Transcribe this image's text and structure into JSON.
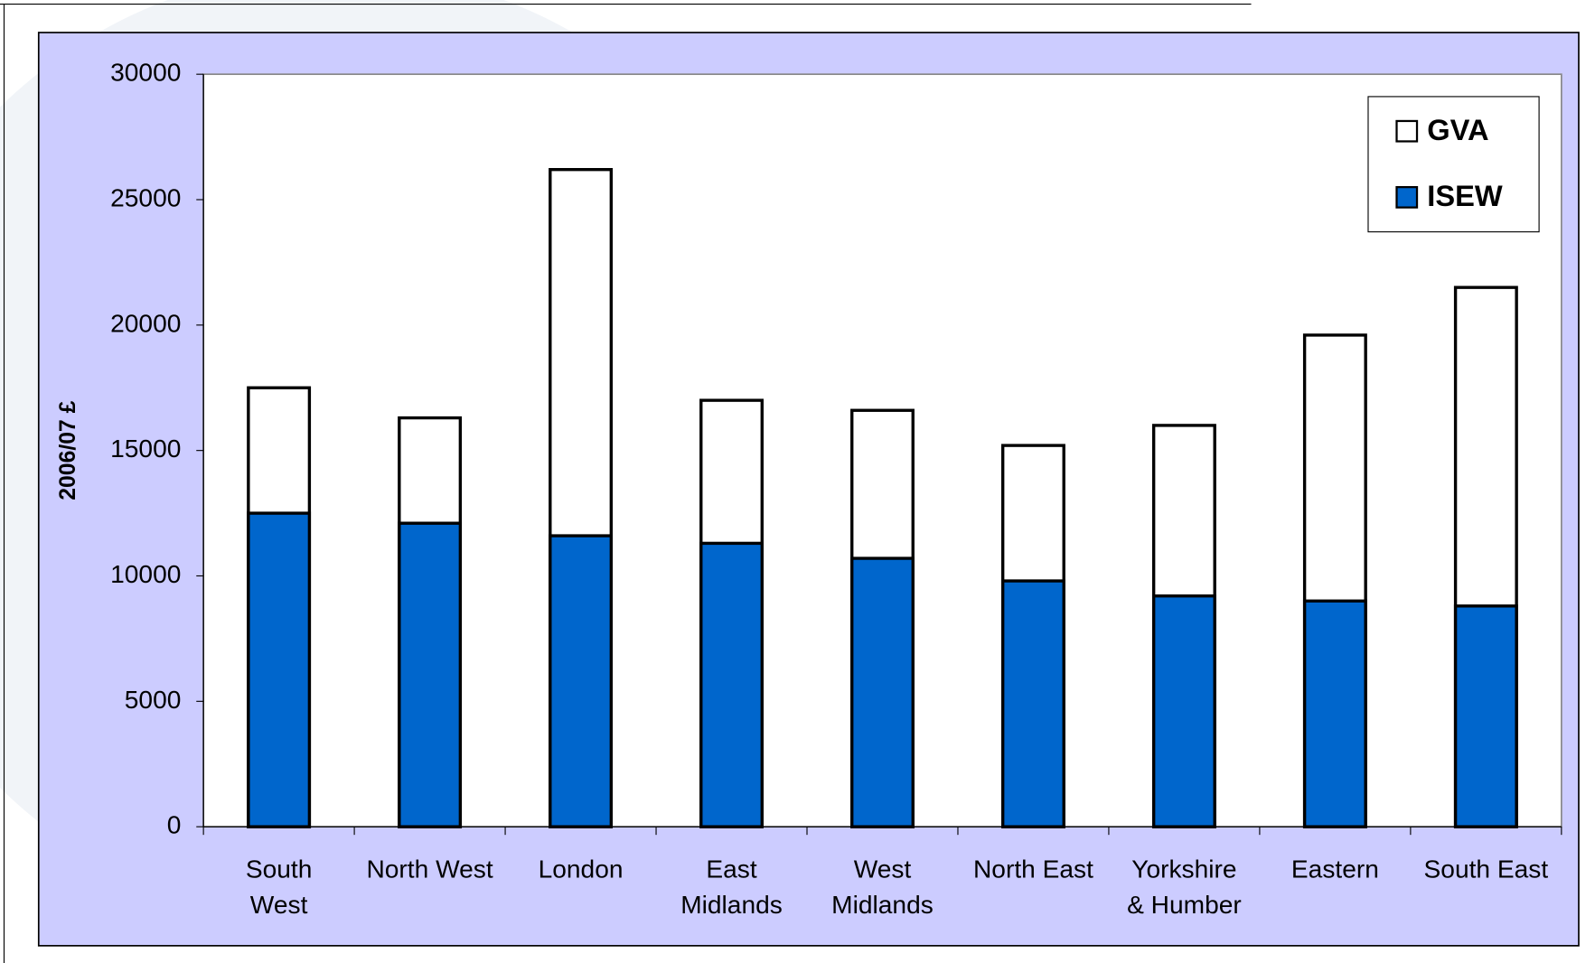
{
  "chart_data": {
    "type": "bar",
    "bar_mode": "overlap",
    "y_label": "2006/07 £",
    "categories": [
      "South\nWest",
      "North West",
      "London",
      "East\nMidlands",
      "West\nMidlands",
      "North East",
      "Yorkshire\n& Humber",
      "Eastern",
      "South East"
    ],
    "series": [
      {
        "name": "GVA",
        "color": "#ffffff",
        "values": [
          17500,
          16300,
          26200,
          17000,
          16600,
          15200,
          16000,
          19600,
          21500
        ]
      },
      {
        "name": "ISEW",
        "color": "#0066cc",
        "values": [
          12500,
          12100,
          11600,
          11300,
          10700,
          9800,
          9200,
          9000,
          8800
        ]
      }
    ],
    "ylim": [
      0,
      30000
    ],
    "yticks": [
      0,
      5000,
      10000,
      15000,
      20000,
      25000,
      30000
    ],
    "legend": "top-right"
  }
}
